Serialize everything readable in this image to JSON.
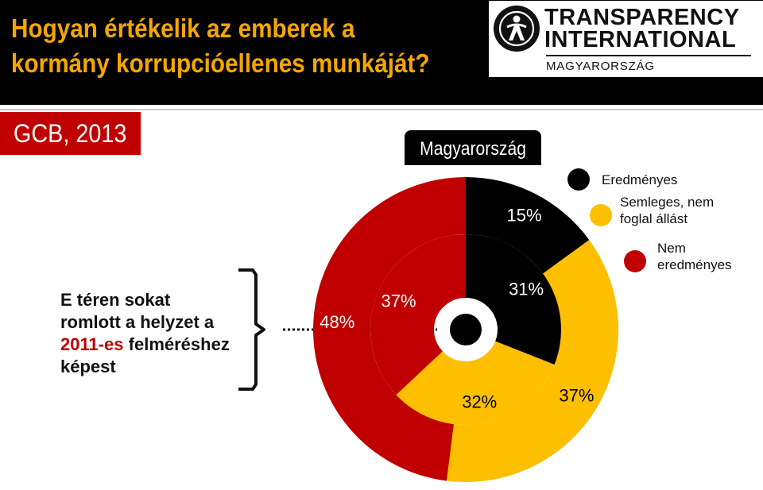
{
  "header": {
    "title_line1": "Hogyan értékelik az emberek a",
    "title_line2": "kormány korrupcióellenes munkáját?",
    "title_color": "#f5a700"
  },
  "logo": {
    "line1": "TRANSPARENCY",
    "line2": "INTERNATIONAL",
    "subtitle": "MAGYARORSZÁG"
  },
  "badge": {
    "label": "GCB, 2013",
    "color": "#c00000"
  },
  "country_label": "Magyarország",
  "note": {
    "line1": "E téren sokat",
    "line2": "romlott a helyzet a",
    "line3_red": "2011-es",
    "line3_rest": " felméréshez",
    "line4": "képest"
  },
  "chart_data": {
    "type": "pie",
    "layout": "nested-donut",
    "title": "Magyarország",
    "categories": [
      "Eredményes",
      "Semleges, nem foglal állást",
      "Nem eredményes"
    ],
    "colors": [
      "#000000",
      "#fdbf00",
      "#c00000"
    ],
    "series": [
      {
        "ring": "outer",
        "values": [
          15,
          37,
          48
        ],
        "labels": [
          "15%",
          "37%",
          "48%"
        ]
      },
      {
        "ring": "inner",
        "values": [
          31,
          32,
          37
        ],
        "labels": [
          "31%",
          "32%",
          "37%"
        ]
      }
    ],
    "legend_position": "top-right"
  }
}
